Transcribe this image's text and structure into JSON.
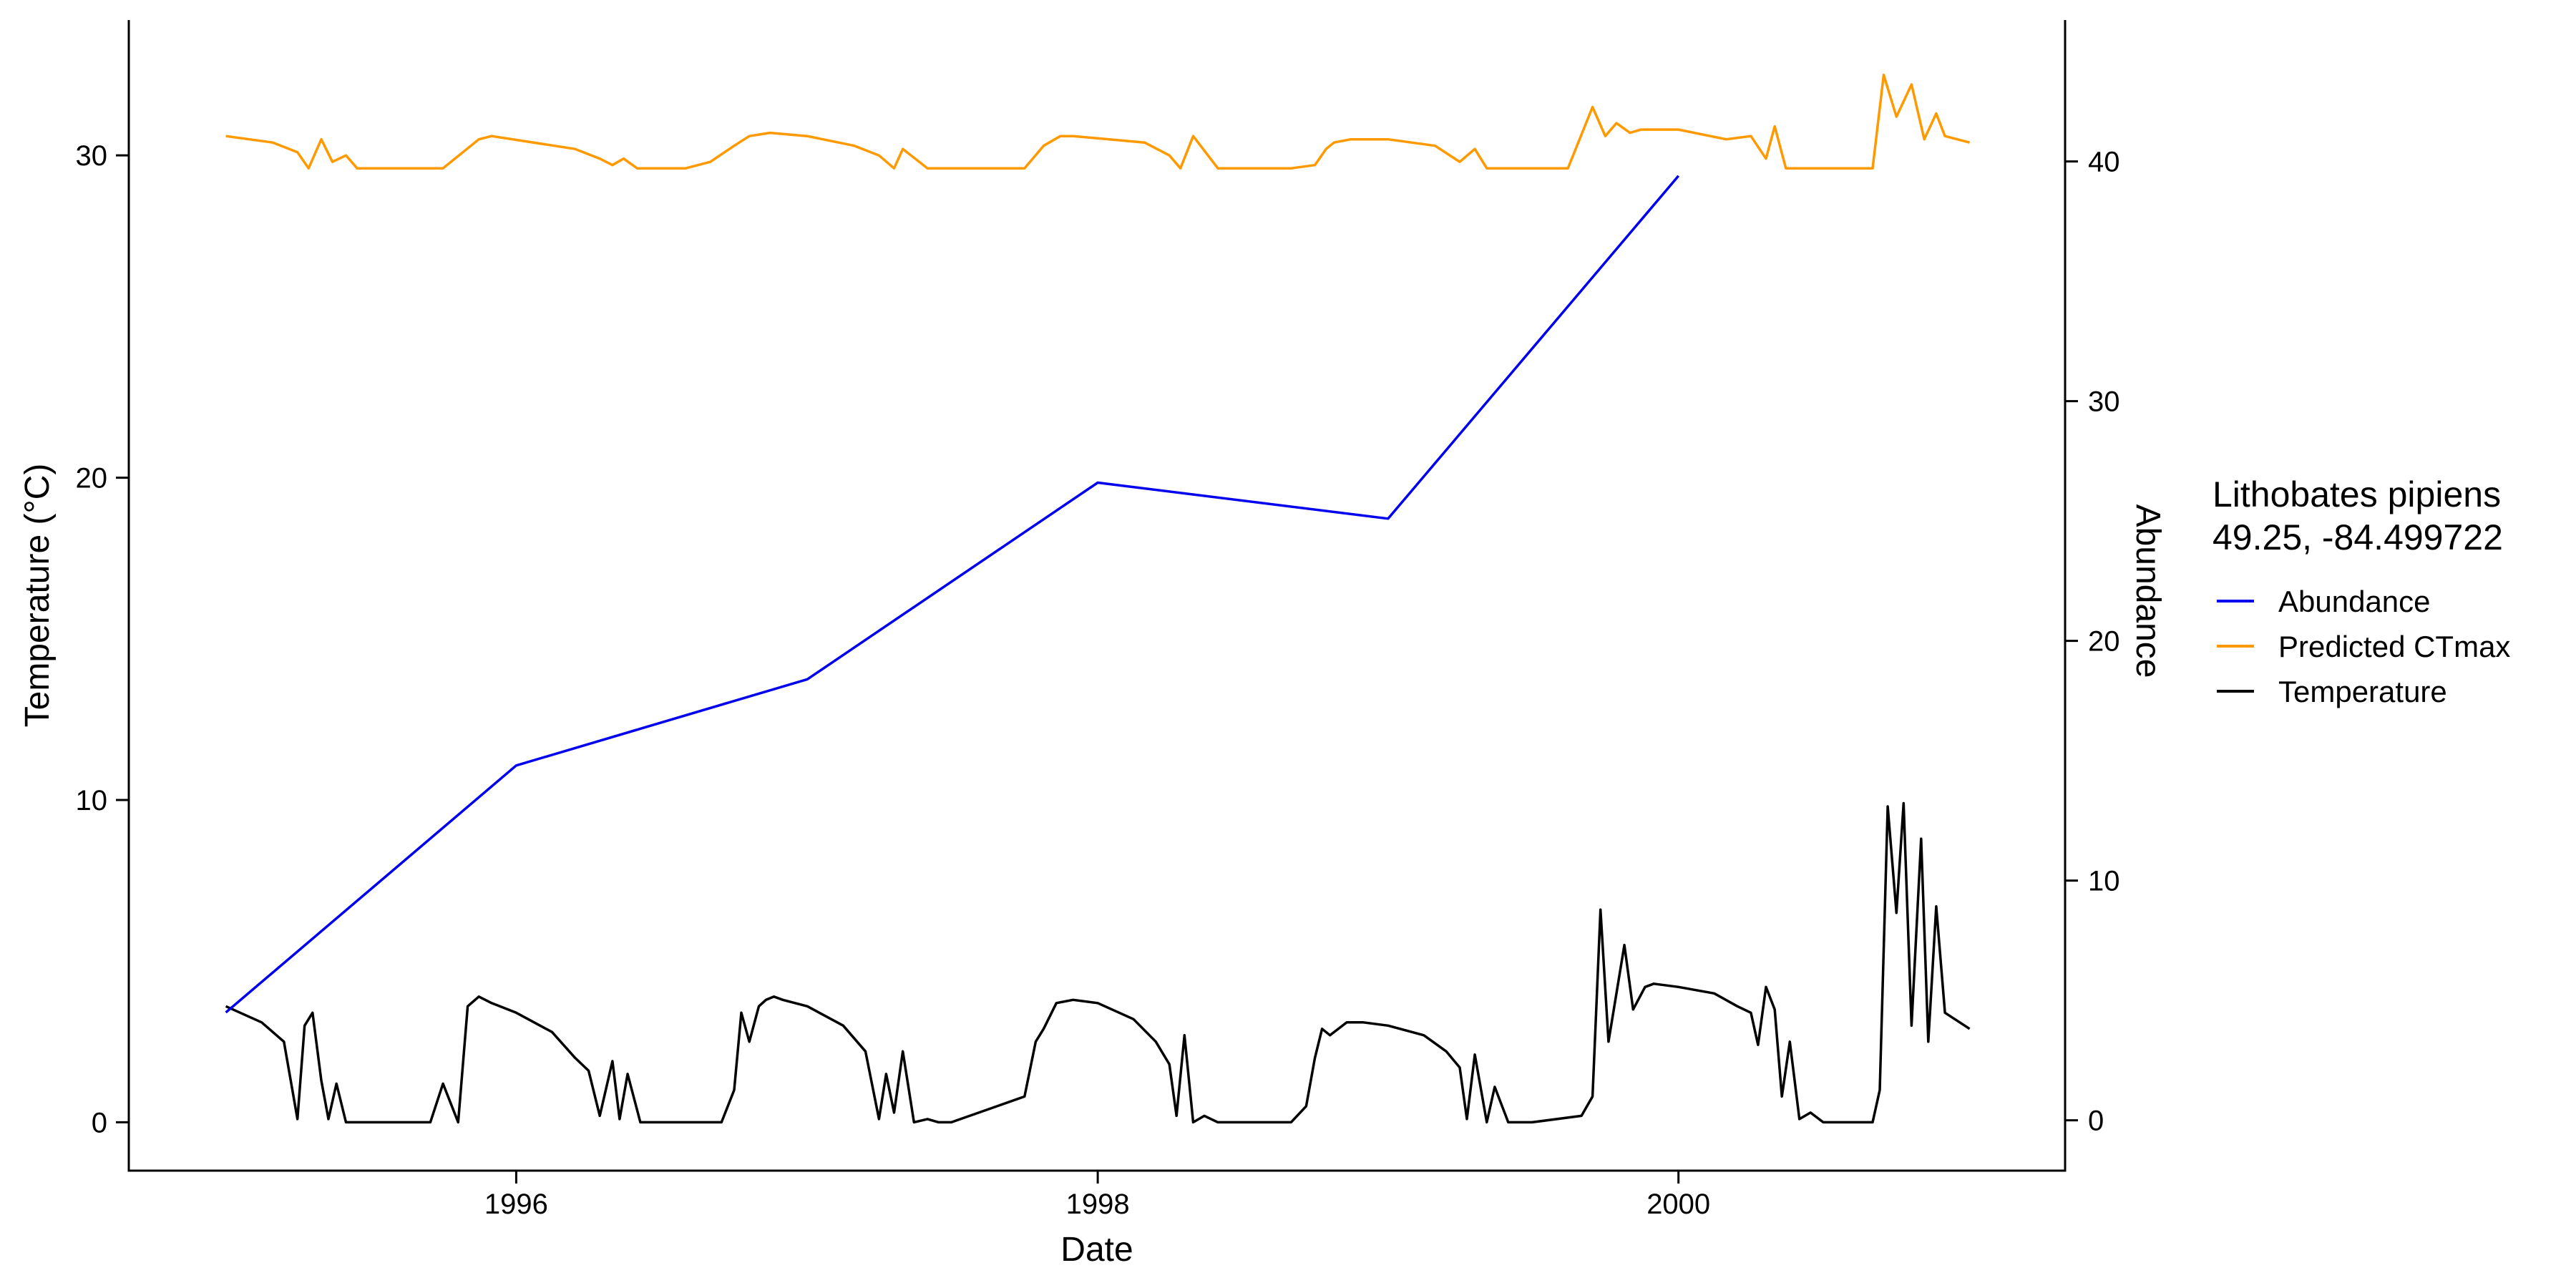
{
  "chart_data": {
    "type": "line",
    "xlabel": "Date",
    "ylabel": "Temperature (°C)",
    "y2label": "Abundance",
    "xlim": [
      "1994-09-01",
      "2001-05-01"
    ],
    "ylim": [
      -1.5,
      34.2
    ],
    "y2lim": [
      -2.1,
      45.9
    ],
    "x_ticks": [
      "1996",
      "1998",
      "2000"
    ],
    "y_ticks": [
      0,
      10,
      20,
      30
    ],
    "y2_ticks": [
      0,
      10,
      20,
      30,
      40
    ],
    "grid": false,
    "legend": {
      "title_line1": "Lithobates pipiens",
      "title_line2": "49.25, -84.499722",
      "placement": "right"
    },
    "colors": {
      "abundance": "#0000ee",
      "ctmax": "#ff9900",
      "temperature": "#000000",
      "y2_title": "#0000ee"
    },
    "series": [
      {
        "name": "Abundance",
        "axis": "right",
        "x": [
          "1995-01-01",
          "1996-01-01",
          "1997-01-01",
          "1998-01-01",
          "1999-01-01",
          "2000-01-01"
        ],
        "values": [
          4.5,
          14.8,
          18.4,
          26.6,
          25.1,
          39.4
        ]
      },
      {
        "name": "Predicted CTmax",
        "axis": "left",
        "x": [
          "1995-01-01",
          "1995-03-01",
          "1995-04-01",
          "1995-04-15",
          "1995-05-01",
          "1995-05-15",
          "1995-06-01",
          "1995-06-15",
          "1995-07-15",
          "1995-10-01",
          "1995-11-15",
          "1995-12-01",
          "1996-03-15",
          "1996-04-15",
          "1996-05-01",
          "1996-05-15",
          "1996-06-01",
          "1996-07-01",
          "1996-08-01",
          "1996-09-01",
          "1996-10-01",
          "1996-10-20",
          "1996-11-15",
          "1997-01-01",
          "1997-03-01",
          "1997-04-01",
          "1997-04-20",
          "1997-05-01",
          "1997-06-01",
          "1997-07-01",
          "1997-10-01",
          "1997-10-25",
          "1997-11-15",
          "1997-12-01",
          "1998-03-01",
          "1998-04-01",
          "1998-04-15",
          "1998-05-01",
          "1998-06-01",
          "1998-09-01",
          "1998-10-01",
          "1998-10-15",
          "1998-10-25",
          "1998-11-15",
          "1999-01-01",
          "1999-03-01",
          "1999-04-01",
          "1999-04-20",
          "1999-05-05",
          "1999-06-01",
          "1999-08-15",
          "1999-09-15",
          "1999-10-01",
          "1999-10-15",
          "1999-11-01",
          "1999-11-15",
          "2000-01-01",
          "2000-03-01",
          "2000-04-01",
          "2000-04-20",
          "2000-05-01",
          "2000-05-15",
          "2000-06-01",
          "2000-09-01",
          "2000-09-15",
          "2000-10-01",
          "2000-10-20",
          "2000-11-05",
          "2000-11-20",
          "2000-12-01",
          "2001-01-01"
        ],
        "values": [
          30.6,
          30.4,
          30.1,
          29.6,
          30.5,
          29.8,
          30.0,
          29.6,
          29.6,
          29.6,
          30.5,
          30.6,
          30.2,
          29.9,
          29.7,
          29.9,
          29.6,
          29.6,
          29.6,
          29.8,
          30.3,
          30.6,
          30.7,
          30.6,
          30.3,
          30.0,
          29.6,
          30.2,
          29.6,
          29.6,
          29.6,
          30.3,
          30.6,
          30.6,
          30.4,
          30.0,
          29.6,
          30.6,
          29.6,
          29.6,
          29.7,
          30.2,
          30.4,
          30.5,
          30.5,
          30.3,
          29.8,
          30.2,
          29.6,
          29.6,
          29.6,
          31.5,
          30.6,
          31.0,
          30.7,
          30.8,
          30.8,
          30.5,
          30.6,
          29.9,
          30.9,
          29.6,
          29.6,
          29.6,
          32.5,
          31.2,
          32.2,
          30.5,
          31.3,
          30.6,
          30.4
        ]
      },
      {
        "name": "Temperature",
        "axis": "left",
        "x": [
          "1995-01-01",
          "1995-02-15",
          "1995-03-15",
          "1995-04-01",
          "1995-04-10",
          "1995-04-20",
          "1995-05-01",
          "1995-05-10",
          "1995-05-20",
          "1995-06-01",
          "1995-06-15",
          "1995-07-01",
          "1995-09-15",
          "1995-10-01",
          "1995-10-20",
          "1995-11-01",
          "1995-11-15",
          "1995-12-01",
          "1996-01-01",
          "1996-02-15",
          "1996-03-15",
          "1996-04-01",
          "1996-04-15",
          "1996-05-01",
          "1996-05-10",
          "1996-05-20",
          "1996-06-05",
          "1996-06-15",
          "1996-07-01",
          "1996-09-15",
          "1996-10-01",
          "1996-10-10",
          "1996-10-20",
          "1996-11-01",
          "1996-11-10",
          "1996-11-20",
          "1996-12-01",
          "1997-01-01",
          "1997-02-15",
          "1997-03-15",
          "1997-04-01",
          "1997-04-10",
          "1997-04-20",
          "1997-05-01",
          "1997-05-15",
          "1997-06-01",
          "1997-06-15",
          "1997-07-01",
          "1997-10-01",
          "1997-10-15",
          "1997-10-25",
          "1997-11-10",
          "1997-12-01",
          "1998-01-01",
          "1998-02-15",
          "1998-03-15",
          "1998-04-01",
          "1998-04-10",
          "1998-04-20",
          "1998-05-01",
          "1998-05-15",
          "1998-06-01",
          "1998-07-01",
          "1998-09-01",
          "1998-09-20",
          "1998-10-01",
          "1998-10-10",
          "1998-10-20",
          "1998-11-10",
          "1998-12-01",
          "1999-01-01",
          "1999-02-15",
          "1999-03-15",
          "1999-04-01",
          "1999-04-10",
          "1999-04-20",
          "1999-05-05",
          "1999-05-15",
          "1999-06-01",
          "1999-07-01",
          "1999-09-01",
          "1999-09-15",
          "1999-09-25",
          "1999-10-05",
          "1999-10-15",
          "1999-10-25",
          "1999-11-05",
          "1999-11-20",
          "1999-12-01",
          "2000-01-01",
          "2000-02-15",
          "2000-03-15",
          "2000-04-01",
          "2000-04-10",
          "2000-04-20",
          "2000-05-01",
          "2000-05-10",
          "2000-05-20",
          "2000-06-01",
          "2000-06-15",
          "2000-07-01",
          "2000-09-01",
          "2000-09-10",
          "2000-09-20",
          "2000-10-01",
          "2000-10-10",
          "2000-10-20",
          "2000-11-01",
          "2000-11-10",
          "2000-11-20",
          "2000-12-01",
          "2001-01-01"
        ],
        "values": [
          3.6,
          3.1,
          2.5,
          0.1,
          3.0,
          3.4,
          1.3,
          0.1,
          1.2,
          0.0,
          0.0,
          0.0,
          0.0,
          1.2,
          0.0,
          3.6,
          3.9,
          3.7,
          3.4,
          2.8,
          2.0,
          1.6,
          0.2,
          1.9,
          0.1,
          1.5,
          0.0,
          0.0,
          0.0,
          0.0,
          1.0,
          3.4,
          2.5,
          3.6,
          3.8,
          3.9,
          3.8,
          3.6,
          3.0,
          2.2,
          0.1,
          1.5,
          0.3,
          2.2,
          0.0,
          0.1,
          0.0,
          0.0,
          0.8,
          2.5,
          2.9,
          3.7,
          3.8,
          3.7,
          3.2,
          2.5,
          1.8,
          0.2,
          2.7,
          0.0,
          0.2,
          0.0,
          0.0,
          0.0,
          0.5,
          2.0,
          2.9,
          2.7,
          3.1,
          3.1,
          3.0,
          2.7,
          2.2,
          1.7,
          0.1,
          2.1,
          0.0,
          1.1,
          0.0,
          0.0,
          0.2,
          0.8,
          6.6,
          2.5,
          4.0,
          5.5,
          3.5,
          4.2,
          4.3,
          4.2,
          4.0,
          3.6,
          3.4,
          2.4,
          4.2,
          3.5,
          0.8,
          2.5,
          0.1,
          0.3,
          0.0,
          0.0,
          1.0,
          9.8,
          6.5,
          9.9,
          3.0,
          8.8,
          2.5,
          6.7,
          3.4,
          2.9
        ]
      }
    ]
  }
}
